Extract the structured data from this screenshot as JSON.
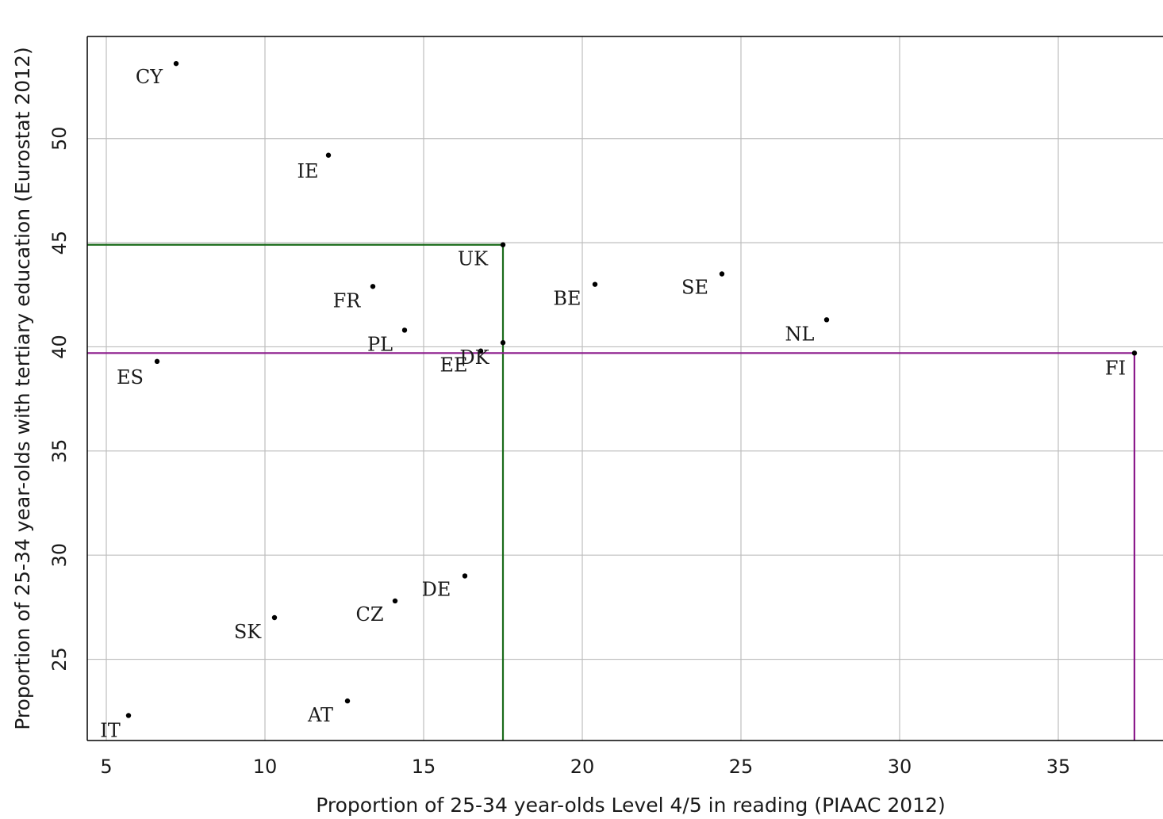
{
  "chart_data": {
    "type": "scatter",
    "title": "",
    "xlabel": "Proportion of 25-34 year-olds Level 4/5 in reading (PIAAC 2012)",
    "ylabel": "Proportion of 25-34 year-olds with tertiary education (Eurostat 2012)",
    "xlim": [
      4.4,
      38.3
    ],
    "ylim": [
      21.1,
      54.9
    ],
    "xticks": [
      5,
      10,
      15,
      20,
      25,
      30,
      35
    ],
    "yticks": [
      25,
      30,
      35,
      40,
      45,
      50
    ],
    "grid": true,
    "legend": "none",
    "point_color": "#000000",
    "points": [
      {
        "label": "CY",
        "x": 7.2,
        "y": 53.6
      },
      {
        "label": "IE",
        "x": 12.0,
        "y": 49.2
      },
      {
        "label": "UK",
        "x": 17.5,
        "y": 44.9
      },
      {
        "label": "FR",
        "x": 13.4,
        "y": 42.9
      },
      {
        "label": "BE",
        "x": 20.4,
        "y": 43.0
      },
      {
        "label": "SE",
        "x": 24.4,
        "y": 43.5
      },
      {
        "label": "NL",
        "x": 27.7,
        "y": 41.3
      },
      {
        "label": "PL",
        "x": 14.4,
        "y": 40.8
      },
      {
        "label": "EE",
        "x": 16.8,
        "y": 39.8
      },
      {
        "label": "DK",
        "x": 17.5,
        "y": 40.2
      },
      {
        "label": "FI",
        "x": 37.4,
        "y": 39.7
      },
      {
        "label": "ES",
        "x": 6.6,
        "y": 39.3
      },
      {
        "label": "DE",
        "x": 16.3,
        "y": 29.0
      },
      {
        "label": "CZ",
        "x": 14.1,
        "y": 27.8
      },
      {
        "label": "SK",
        "x": 10.3,
        "y": 27.0
      },
      {
        "label": "AT",
        "x": 12.6,
        "y": 23.0
      },
      {
        "label": "IT",
        "x": 5.7,
        "y": 22.3
      }
    ],
    "reference_lines": [
      {
        "name": "UK",
        "x": 17.5,
        "y": 44.9,
        "color": "#1a6b1a"
      },
      {
        "name": "FI",
        "x": 37.4,
        "y": 39.7,
        "color": "#8b1a8b"
      }
    ]
  }
}
